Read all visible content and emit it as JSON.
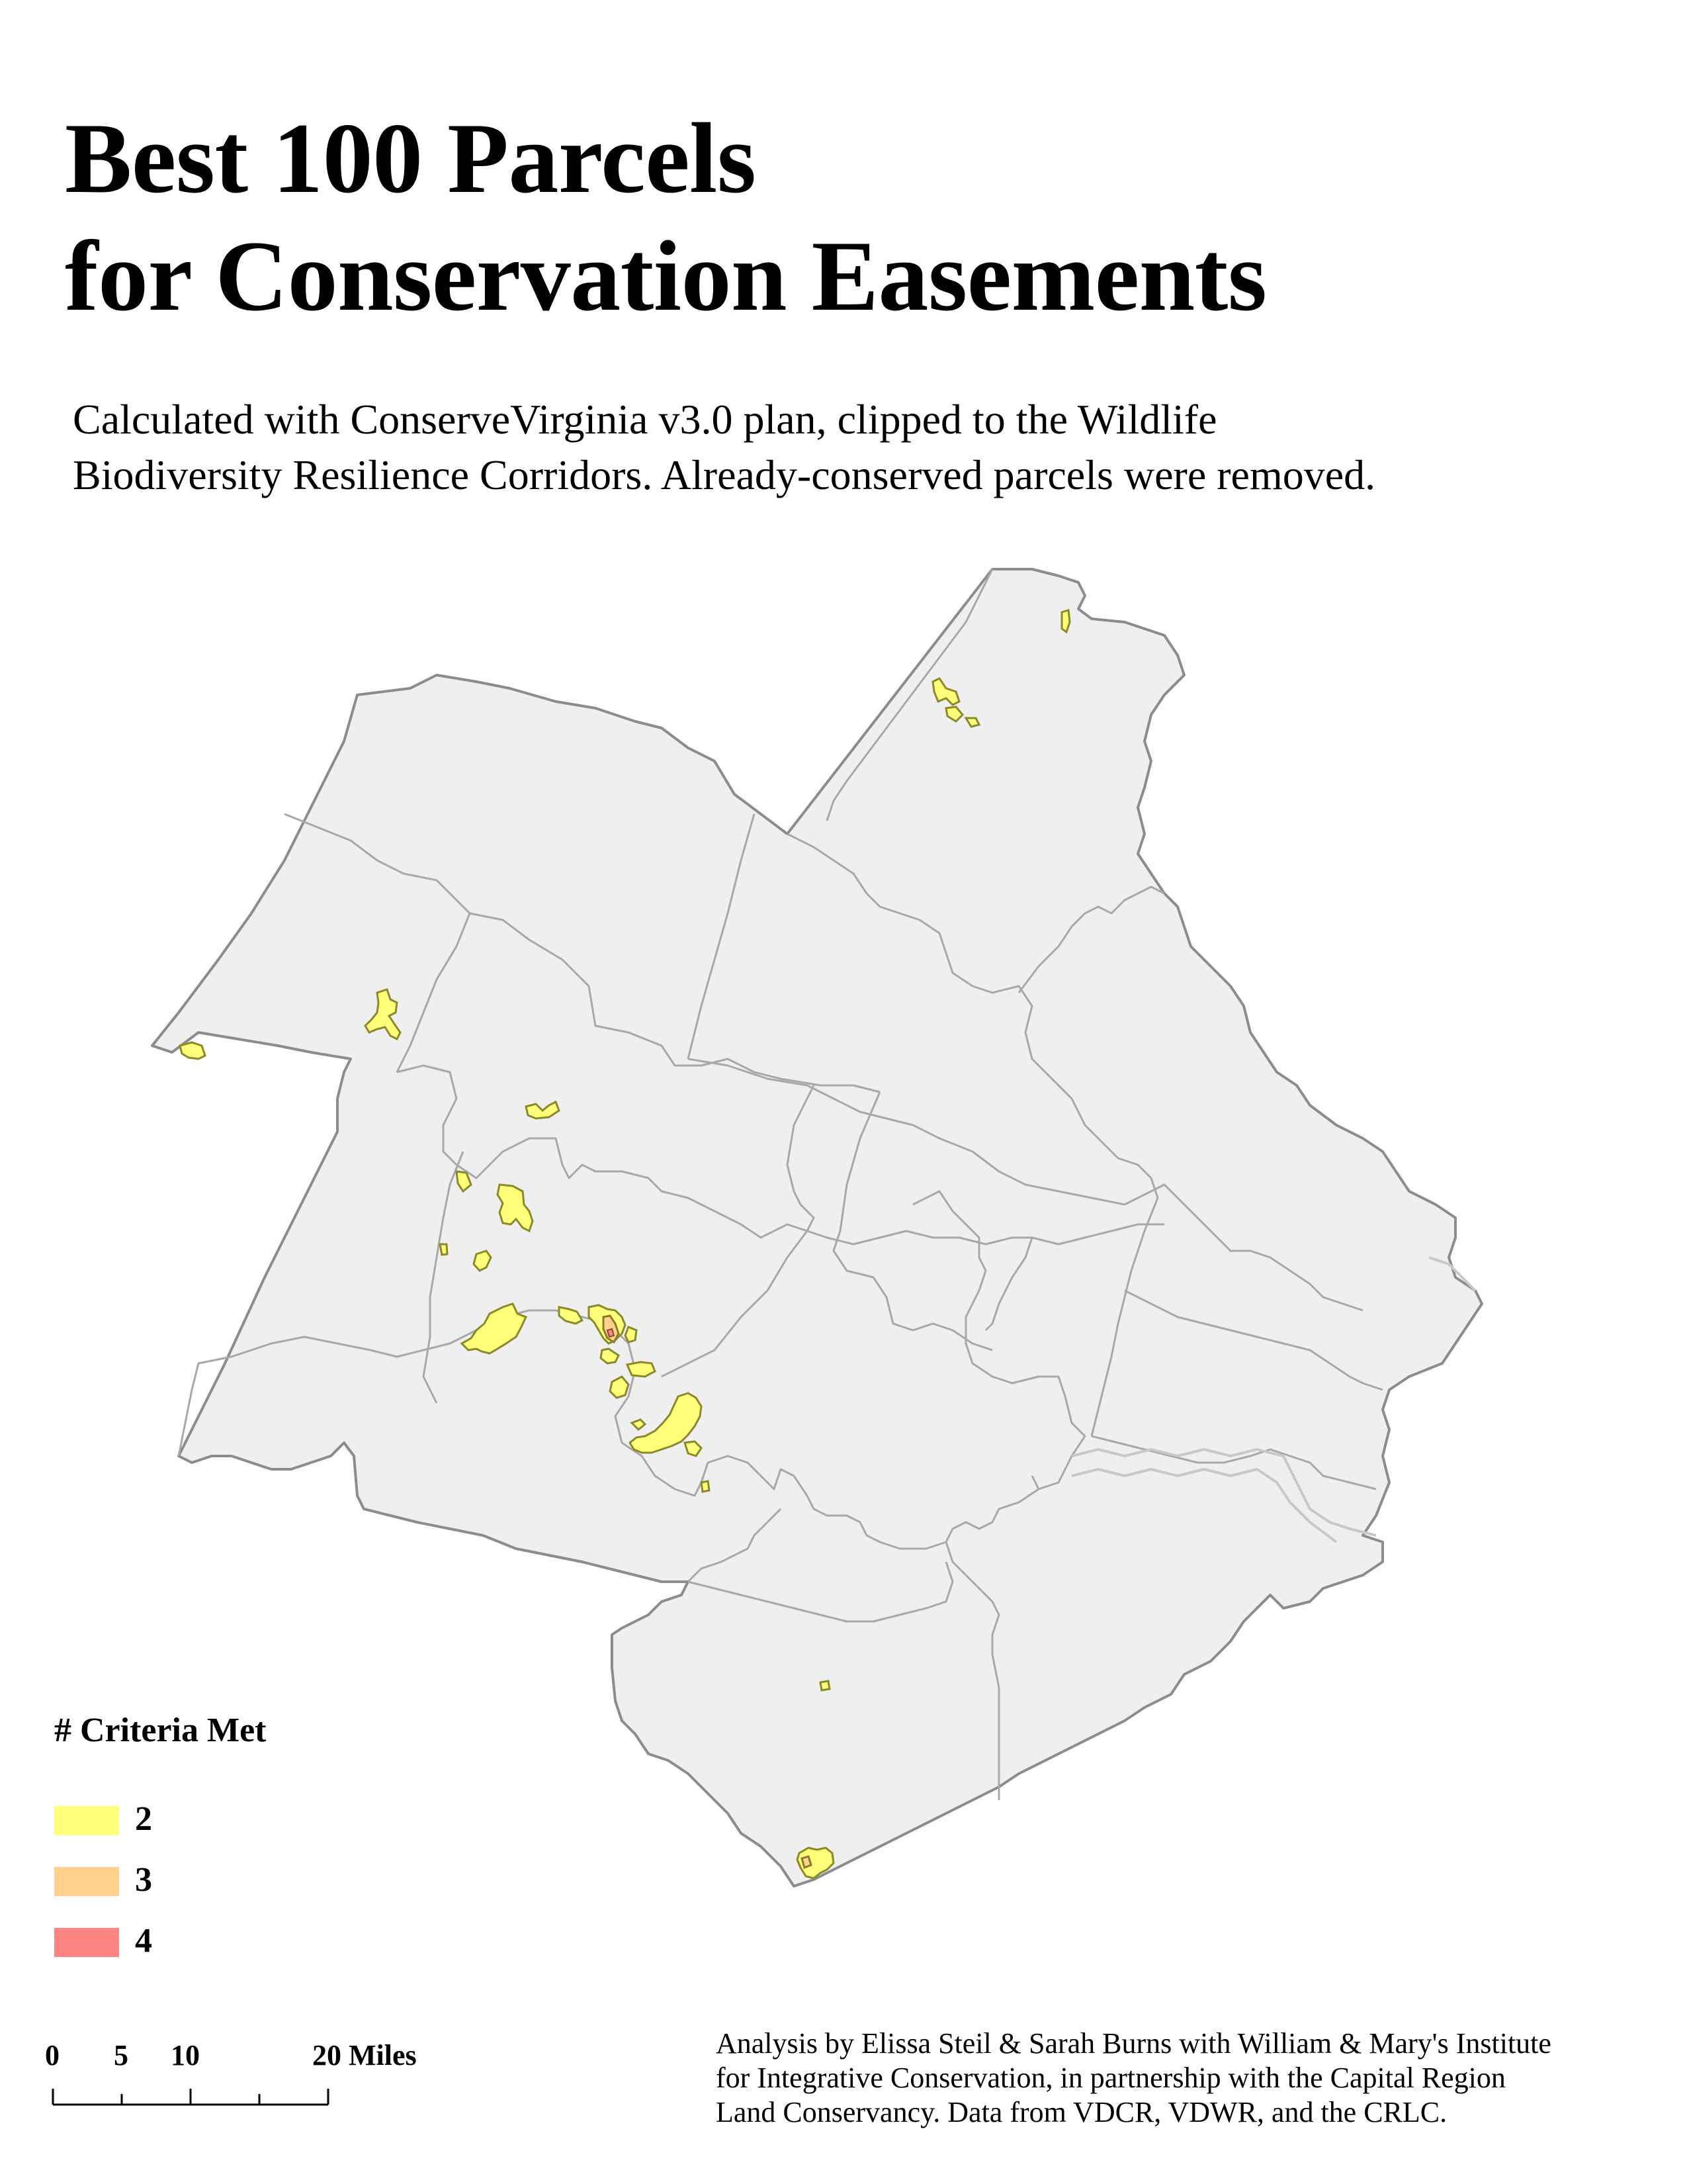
{
  "title": {
    "line1": "Best 100 Parcels",
    "line2": "for Conservation Easements"
  },
  "subtitle": {
    "line1": "Calculated with ConserveVirginia v3.0 plan, clipped to the Wildlife",
    "line2": "Biodiversity Resilience Corridors. Already-conserved parcels were removed."
  },
  "legend": {
    "title": "# Criteria Met",
    "items": [
      {
        "label": "2",
        "color": "#ffff7a"
      },
      {
        "label": "3",
        "color": "#ffd18a"
      },
      {
        "label": "4",
        "color": "#ff8585"
      }
    ]
  },
  "scalebar": {
    "labels": [
      "0",
      "5",
      "10",
      "20 Miles"
    ]
  },
  "credits": {
    "line1": "Analysis by Elissa Steil & Sarah Burns with William & Mary's Institute",
    "line2": "for Integrative Conservation, in partnership with the Capital Region",
    "line3": "Land Conservancy. Data from VDCR, VDWR, and the CRLC."
  },
  "map": {
    "region_fill": "#efefef",
    "boundary_color": "#8c8c8c",
    "parcel_fill_2": "#ffff7a",
    "parcel_fill_3": "#ffd18a",
    "parcel_fill_4": "#ff8585",
    "parcel_stroke": "#8a8a2a"
  }
}
